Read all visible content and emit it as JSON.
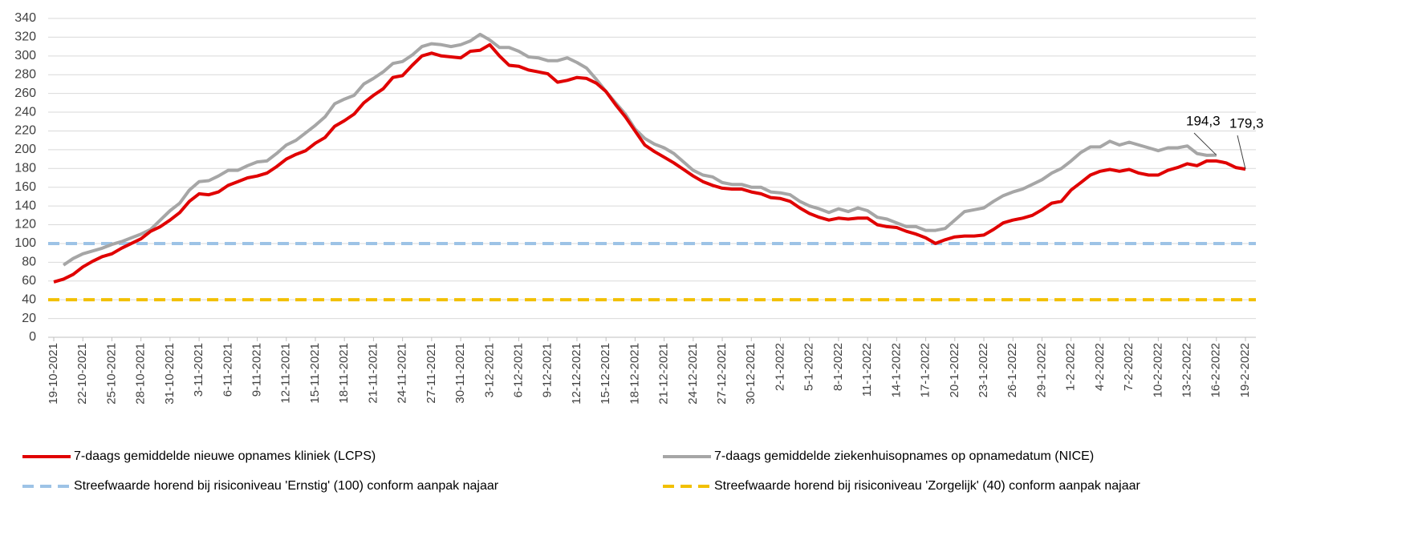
{
  "chart_data": {
    "type": "line",
    "categories": [
      "19-10-2021",
      null,
      null,
      "22-10-2021",
      null,
      null,
      "25-10-2021",
      null,
      null,
      "28-10-2021",
      null,
      null,
      "31-10-2021",
      null,
      null,
      "3-11-2021",
      null,
      null,
      "6-11-2021",
      null,
      null,
      "9-11-2021",
      null,
      null,
      "12-11-2021",
      null,
      null,
      "15-11-2021",
      null,
      null,
      "18-11-2021",
      null,
      null,
      "21-11-2021",
      null,
      null,
      "24-11-2021",
      null,
      null,
      "27-11-2021",
      null,
      null,
      "30-11-2021",
      null,
      null,
      "3-12-2021",
      null,
      null,
      "6-12-2021",
      null,
      null,
      "9-12-2021",
      null,
      null,
      "12-12-2021",
      null,
      null,
      "15-12-2021",
      null,
      null,
      "18-12-2021",
      null,
      null,
      "21-12-2021",
      null,
      null,
      "24-12-2021",
      null,
      null,
      "27-12-2021",
      null,
      null,
      "30-12-2021",
      null,
      null,
      "2-1-2022",
      null,
      null,
      "5-1-2022",
      null,
      null,
      "8-1-2022",
      null,
      null,
      "11-1-2022",
      null,
      null,
      "14-1-2022",
      null,
      null,
      "17-1-2022",
      null,
      null,
      "20-1-2022",
      null,
      null,
      "23-1-2022",
      null,
      null,
      "26-1-2022",
      null,
      null,
      "29-1-2022",
      null,
      null,
      "1-2-2022",
      null,
      null,
      "4-2-2022",
      null,
      null,
      "7-2-2022",
      null,
      null,
      "10-2-2022",
      null,
      null,
      "13-2-2022",
      null,
      null,
      "16-2-2022",
      null,
      null,
      "19-2-2022"
    ],
    "series": [
      {
        "name": "7-daags gemiddelde nieuwe opnames kliniek (LCPS)",
        "color": "#e00000",
        "values": [
          59,
          62,
          67,
          75,
          81,
          86,
          89,
          95,
          100,
          105,
          113,
          118,
          125,
          133,
          145,
          153,
          152,
          155,
          162,
          166,
          170,
          172,
          175,
          182,
          190,
          195,
          199,
          207,
          213,
          225,
          231,
          238,
          250,
          258,
          265,
          277,
          279,
          290,
          300,
          303,
          300,
          299,
          298,
          305,
          306,
          312,
          300,
          290,
          289,
          285,
          283,
          281,
          272,
          274,
          277,
          276,
          271,
          262,
          248,
          235,
          220,
          205,
          198,
          192,
          186,
          179,
          172,
          166,
          162,
          159,
          158,
          158,
          155,
          153,
          149,
          148,
          145,
          138,
          132,
          128,
          125,
          127,
          126,
          127,
          127,
          120,
          118,
          117,
          113,
          110,
          106,
          100,
          104,
          107,
          108,
          108,
          109,
          115,
          122,
          125,
          127,
          130,
          136,
          143,
          145,
          157,
          165,
          173,
          177,
          179,
          177,
          179,
          175,
          173,
          173,
          178,
          181,
          185,
          183,
          188,
          188,
          186,
          181,
          179.3
        ],
        "value_labels": [
          null,
          null,
          null,
          null,
          null,
          null,
          null,
          null,
          null,
          null,
          null,
          null,
          null,
          null,
          null,
          null,
          null,
          null,
          null,
          null,
          null,
          null,
          null,
          null,
          null,
          null,
          null,
          null,
          null,
          null,
          null,
          null,
          null,
          null,
          null,
          null,
          null,
          null,
          null,
          null,
          null,
          null,
          null,
          null,
          null,
          null,
          null,
          null,
          null,
          null,
          null,
          null,
          null,
          null,
          null,
          null,
          null,
          null,
          null,
          null,
          null,
          null,
          null,
          null,
          null,
          null,
          null,
          null,
          null,
          null,
          null,
          null,
          null,
          null,
          null,
          null,
          null,
          null,
          null,
          null,
          null,
          null,
          null,
          null,
          null,
          null,
          null,
          null,
          null,
          null,
          null,
          null,
          null,
          null,
          null,
          null,
          null,
          null,
          null,
          null,
          null,
          null,
          null,
          null,
          null,
          null,
          null,
          null,
          null,
          null,
          null,
          null,
          null,
          null,
          null,
          null,
          null,
          null,
          null,
          null,
          null,
          null,
          null,
          "179,3"
        ]
      },
      {
        "name": "7-daags gemiddelde ziekenhuisopnames op opnamedatum (NICE)",
        "color": "#a6a6a6",
        "values": [
          null,
          77,
          84,
          89,
          92,
          95,
          99,
          102,
          106,
          110,
          115,
          125,
          135,
          143,
          157,
          166,
          167,
          172,
          178,
          178,
          183,
          187,
          188,
          196,
          205,
          210,
          218,
          226,
          235,
          249,
          254,
          258,
          270,
          276,
          283,
          292,
          294,
          301,
          310,
          313,
          312,
          310,
          312,
          316,
          323,
          317,
          309,
          309,
          305,
          299,
          298,
          295,
          295,
          298,
          293,
          287,
          275,
          262,
          250,
          238,
          222,
          212,
          206,
          202,
          196,
          187,
          178,
          173,
          171,
          165,
          163,
          163,
          160,
          160,
          155,
          154,
          152,
          145,
          140,
          137,
          133,
          137,
          134,
          138,
          135,
          128,
          126,
          122,
          118,
          118,
          114,
          114,
          116,
          125,
          134,
          136,
          138,
          145,
          151,
          155,
          158,
          163,
          168,
          175,
          180,
          188,
          197,
          203,
          203,
          209,
          205,
          208,
          205,
          202,
          199,
          202,
          202,
          204,
          196,
          194,
          194.3,
          null,
          null,
          null
        ],
        "value_labels": [
          null,
          null,
          null,
          null,
          null,
          null,
          null,
          null,
          null,
          null,
          null,
          null,
          null,
          null,
          null,
          null,
          null,
          null,
          null,
          null,
          null,
          null,
          null,
          null,
          null,
          null,
          null,
          null,
          null,
          null,
          null,
          null,
          null,
          null,
          null,
          null,
          null,
          null,
          null,
          null,
          null,
          null,
          null,
          null,
          null,
          null,
          null,
          null,
          null,
          null,
          null,
          null,
          null,
          null,
          null,
          null,
          null,
          null,
          null,
          null,
          null,
          null,
          null,
          null,
          null,
          null,
          null,
          null,
          null,
          null,
          null,
          null,
          null,
          null,
          null,
          null,
          null,
          null,
          null,
          null,
          null,
          null,
          null,
          null,
          null,
          null,
          null,
          null,
          null,
          null,
          null,
          null,
          null,
          null,
          null,
          null,
          null,
          null,
          null,
          null,
          null,
          null,
          null,
          null,
          null,
          null,
          null,
          null,
          null,
          null,
          null,
          null,
          null,
          null,
          null,
          null,
          null,
          null,
          null,
          null,
          "194,3",
          null,
          null,
          null
        ]
      }
    ],
    "reference_lines": [
      {
        "name": "Streefwaarde horend bij risiconiveau 'Ernstig' (100) conform aanpak najaar",
        "value": 100,
        "color": "#9dc3e6",
        "dashed": true
      },
      {
        "name": "Streefwaarde horend bij risiconiveau 'Zorgelijk' (40) conform aanpak najaar",
        "value": 40,
        "color": "#f2c000",
        "dashed": true
      }
    ],
    "ylim": [
      0,
      340
    ],
    "yticks": [
      0,
      20,
      40,
      60,
      80,
      100,
      120,
      140,
      160,
      180,
      200,
      220,
      240,
      260,
      280,
      300,
      320,
      340
    ],
    "grid": true
  }
}
